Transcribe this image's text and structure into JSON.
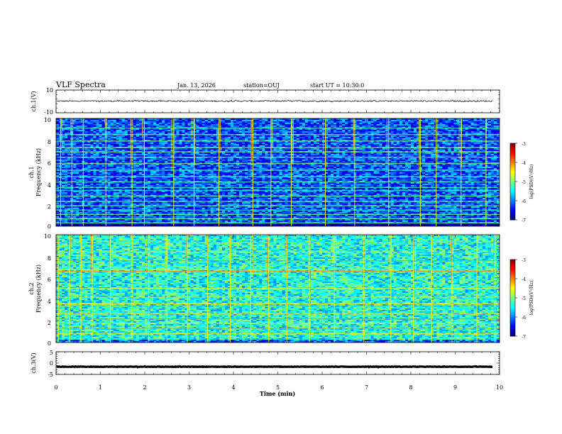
{
  "header": {
    "title": "VLF Spectra",
    "date": "Jan. 13, 2026",
    "station": "station=OUJ",
    "start": "start UT =   10:30:0"
  },
  "chart_data": [
    {
      "type": "line",
      "name": "ch1-waveform",
      "ylabel": "ch.1(V)",
      "ylim": [
        -10,
        10
      ],
      "yticks": [
        "10",
        "-10"
      ],
      "baseline": 0.3,
      "amplitude": 0.6,
      "xlim": [
        0,
        10
      ],
      "grid": false
    },
    {
      "type": "heatmap",
      "name": "ch1-spectrogram",
      "ylabel_top": "ch.1",
      "ylabel": "Frequency (kHz)",
      "ylim": [
        0,
        10
      ],
      "yticks": [
        "0",
        "2",
        "4",
        "6",
        "8",
        "10"
      ],
      "xlim": [
        0,
        9.8
      ],
      "data_end_min": 9.8,
      "value_range": [
        -7,
        -3
      ],
      "base_level": -6.2,
      "colorbar": {
        "label": "log(PSD)(V²/Hz)",
        "ticks": [
          "-3",
          "-4",
          "-5",
          "-6",
          "-7"
        ]
      },
      "bands_khz": [
        0.3,
        0.7,
        1.1,
        1.5,
        1.9,
        2.3,
        2.8,
        3.3,
        3.6,
        4.1,
        4.6,
        5.2,
        5.8,
        6.4,
        6.9,
        7.3,
        7.9,
        8.5,
        9.1
      ],
      "sferic_times_min": [
        0.1,
        0.35,
        0.6,
        1.1,
        1.68,
        1.95,
        2.6,
        3.05,
        3.6,
        4.35,
        4.75,
        5.2,
        5.95,
        6.6,
        7.35,
        8.05,
        8.4,
        8.95,
        9.5
      ]
    },
    {
      "type": "heatmap",
      "name": "ch2-spectrogram",
      "ylabel_top": "ch.2",
      "ylabel": "Frequency (kHz)",
      "ylim": [
        0,
        10
      ],
      "yticks": [
        "0",
        "2",
        "4",
        "6",
        "8",
        "10"
      ],
      "xlim": [
        0,
        9.8
      ],
      "data_end_min": 9.8,
      "value_range": [
        -7,
        -3
      ],
      "base_level": -5.4,
      "colorbar": {
        "label": "log(PSD)(V²/Hz)",
        "ticks": [
          "-3",
          "-4",
          "-5",
          "-6",
          "-7"
        ]
      },
      "bands_khz": [
        0.8,
        1.3,
        1.8,
        2.2,
        2.7,
        3.4,
        3.6,
        4.2,
        5.0,
        6.6,
        6.8,
        7.6,
        8.4,
        9.3
      ],
      "sferic_times_min": [
        0.05,
        0.3,
        0.55,
        0.8,
        1.2,
        1.68,
        2.05,
        2.45,
        2.9,
        3.35,
        3.85,
        4.3,
        4.7,
        5.1,
        5.6,
        6.15,
        6.8,
        7.4,
        7.9,
        8.3,
        8.75,
        9.3,
        9.7
      ]
    },
    {
      "type": "line",
      "name": "ch3-waveform",
      "ylabel": "ch.3(V)",
      "ylim": [
        -5,
        5
      ],
      "yticks": [
        "5",
        "0",
        "-5"
      ],
      "baseline": -1.6,
      "amplitude": 0.1,
      "xlim": [
        0,
        10
      ],
      "xlabel": "Time (min)",
      "xticks": [
        "0",
        "1",
        "2",
        "3",
        "4",
        "5",
        "6",
        "7",
        "8",
        "9",
        "10"
      ],
      "grid": false
    }
  ]
}
